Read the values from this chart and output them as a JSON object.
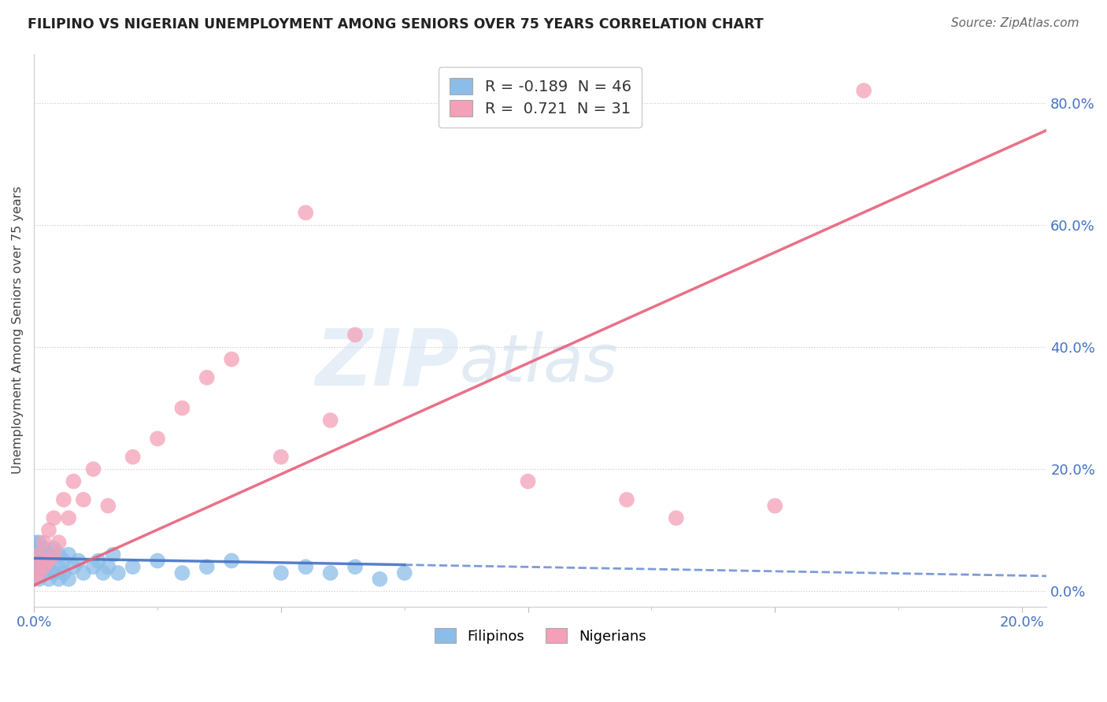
{
  "title": "FILIPINO VS NIGERIAN UNEMPLOYMENT AMONG SENIORS OVER 75 YEARS CORRELATION CHART",
  "source": "Source: ZipAtlas.com",
  "ylabel": "Unemployment Among Seniors over 75 years",
  "xlim": [
    0.0,
    0.205
  ],
  "ylim": [
    -0.025,
    0.88
  ],
  "xticks": [
    0.0,
    0.05,
    0.1,
    0.15,
    0.2
  ],
  "yticks": [
    0.0,
    0.2,
    0.4,
    0.6,
    0.8
  ],
  "watermark": "ZIPAtlas",
  "filipino_color": "#8BBDE8",
  "nigerian_color": "#F4A0B8",
  "filipino_line_color": "#4472C4",
  "nigerian_line_color": "#E8607A",
  "legend_R_filipino": "-0.189",
  "legend_N_filipino": "46",
  "legend_R_nigerian": "0.721",
  "legend_N_nigerian": "31",
  "fil_x": [
    0.0,
    0.0,
    0.0,
    0.0,
    0.0,
    0.0,
    0.0,
    0.001,
    0.001,
    0.001,
    0.001,
    0.002,
    0.002,
    0.002,
    0.003,
    0.003,
    0.003,
    0.004,
    0.004,
    0.005,
    0.005,
    0.005,
    0.006,
    0.006,
    0.007,
    0.007,
    0.008,
    0.009,
    0.01,
    0.012,
    0.013,
    0.014,
    0.015,
    0.016,
    0.017,
    0.02,
    0.025,
    0.03,
    0.035,
    0.04,
    0.05,
    0.055,
    0.06,
    0.065,
    0.07,
    0.075
  ],
  "fil_y": [
    0.02,
    0.03,
    0.04,
    0.05,
    0.06,
    0.07,
    0.08,
    0.02,
    0.04,
    0.06,
    0.08,
    0.03,
    0.05,
    0.07,
    0.02,
    0.04,
    0.06,
    0.03,
    0.07,
    0.02,
    0.04,
    0.06,
    0.03,
    0.05,
    0.02,
    0.06,
    0.04,
    0.05,
    0.03,
    0.04,
    0.05,
    0.03,
    0.04,
    0.06,
    0.03,
    0.04,
    0.05,
    0.03,
    0.04,
    0.05,
    0.03,
    0.04,
    0.03,
    0.04,
    0.02,
    0.03
  ],
  "nig_x": [
    0.0,
    0.0,
    0.001,
    0.001,
    0.002,
    0.002,
    0.003,
    0.003,
    0.004,
    0.004,
    0.005,
    0.006,
    0.007,
    0.008,
    0.01,
    0.012,
    0.015,
    0.02,
    0.025,
    0.03,
    0.035,
    0.04,
    0.05,
    0.055,
    0.06,
    0.065,
    0.1,
    0.12,
    0.13,
    0.15,
    0.168
  ],
  "nig_y": [
    0.02,
    0.05,
    0.03,
    0.06,
    0.04,
    0.08,
    0.05,
    0.1,
    0.06,
    0.12,
    0.08,
    0.15,
    0.12,
    0.18,
    0.15,
    0.2,
    0.14,
    0.22,
    0.25,
    0.3,
    0.35,
    0.38,
    0.22,
    0.62,
    0.28,
    0.42,
    0.18,
    0.15,
    0.12,
    0.14,
    0.82
  ],
  "fil_trend_x0": 0.0,
  "fil_trend_x1": 0.205,
  "fil_trend_y0": 0.054,
  "fil_trend_y1": 0.025,
  "nig_trend_x0": 0.0,
  "nig_trend_x1": 0.205,
  "nig_trend_y0": 0.01,
  "nig_trend_y1": 0.755
}
